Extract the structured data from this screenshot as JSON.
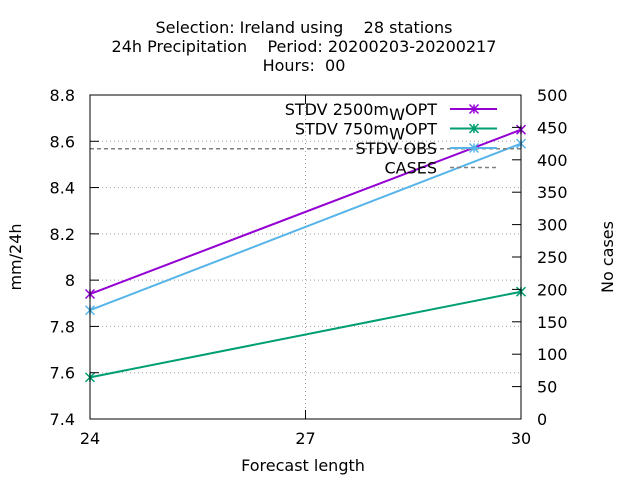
{
  "chart_data": {
    "type": "line",
    "title_lines": [
      "Selection: Ireland using    28 stations",
      "24h Precipitation    Period: 20200203-20200217",
      "Hours:  00"
    ],
    "xlabel": "Forecast length",
    "ylabel": "mm/24h",
    "y2label": "No cases",
    "x_ticks": [
      24,
      27,
      30
    ],
    "xlim": [
      24,
      30
    ],
    "y_ticks": [
      "7.4",
      "7.6",
      "7.8",
      "8",
      "8.2",
      "8.4",
      "8.6",
      "8.8"
    ],
    "ylim": [
      7.4,
      8.8
    ],
    "y2_ticks": [
      0,
      50,
      100,
      150,
      200,
      250,
      300,
      350,
      400,
      450,
      500
    ],
    "y2lim": [
      0,
      500
    ],
    "grid": true,
    "legend_position": "top-right",
    "series": [
      {
        "name": "STDV 2500m",
        "subscript": "W",
        "suffix": "OPT",
        "color": "#9400d3",
        "axis": "y",
        "marker": "x",
        "x": [
          24,
          30
        ],
        "values": [
          7.94,
          8.65
        ]
      },
      {
        "name": "STDV 750m",
        "subscript": "W",
        "suffix": "OPT",
        "color": "#009e73",
        "axis": "y",
        "marker": "x",
        "x": [
          24,
          30
        ],
        "values": [
          7.58,
          7.95
        ]
      },
      {
        "name": "STDV OBS",
        "subscript": "",
        "suffix": "",
        "color": "#56b4e9",
        "axis": "y",
        "marker": "x",
        "x": [
          24,
          30
        ],
        "values": [
          7.87,
          8.59
        ]
      },
      {
        "name": "CASES",
        "subscript": "",
        "suffix": "",
        "color": "#808080",
        "axis": "y2",
        "marker": "none",
        "dashed": true,
        "x": [
          24,
          30
        ],
        "values": [
          417,
          417
        ]
      }
    ]
  }
}
